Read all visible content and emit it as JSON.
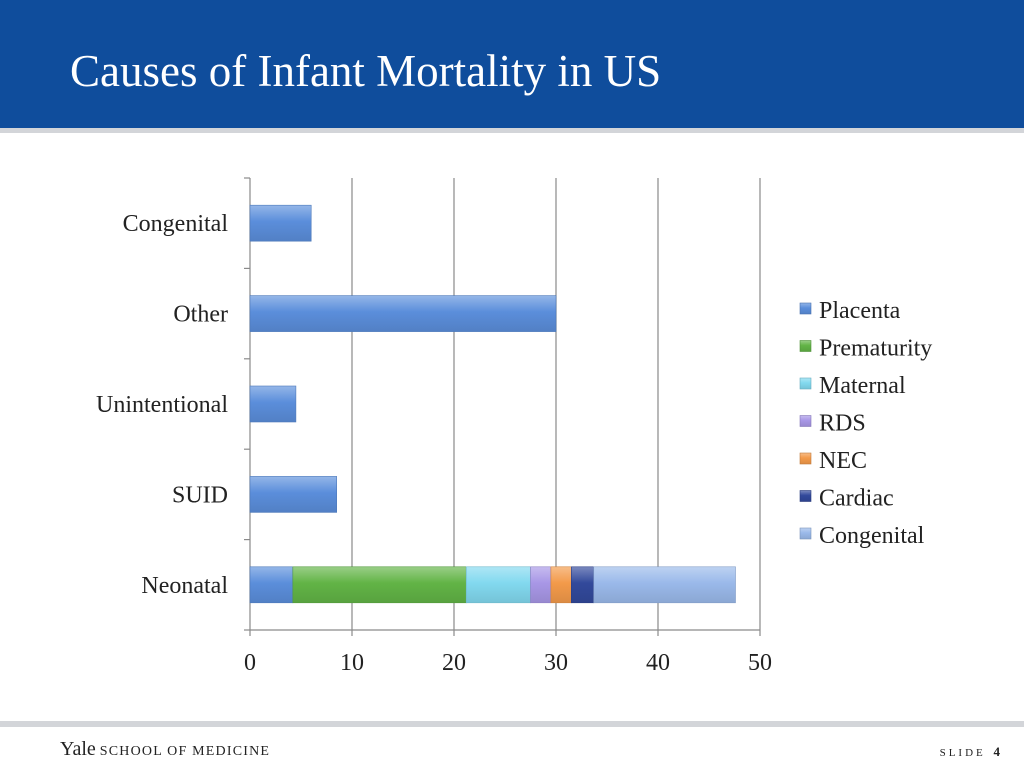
{
  "slide": {
    "title": "Causes of Infant Mortality in US",
    "footer_brand_yale": "Yale",
    "footer_brand_school": "SCHOOL OF MEDICINE",
    "slide_label": "SLIDE",
    "slide_number": "4"
  },
  "colors": {
    "header_blue": "#0f4d9c",
    "rule_gray": "#d3d5d9"
  },
  "chart_data": {
    "type": "bar",
    "orientation": "horizontal",
    "stacked": true,
    "categories": [
      "Congenital",
      "Other",
      "Unintentional",
      "SUID",
      "Neonatal"
    ],
    "series": [
      {
        "name": "Placenta",
        "color": "#5b8edb",
        "values": [
          6,
          30,
          4.5,
          8.5,
          4.2
        ]
      },
      {
        "name": "Prematurity",
        "color": "#62b446",
        "values": [
          0,
          0,
          0,
          0,
          17
        ]
      },
      {
        "name": "Maternal",
        "color": "#82d9ef",
        "values": [
          0,
          0,
          0,
          0,
          6.3
        ]
      },
      {
        "name": "RDS",
        "color": "#a897e6",
        "values": [
          0,
          0,
          0,
          0,
          2
        ]
      },
      {
        "name": "NEC",
        "color": "#f39a4a",
        "values": [
          0,
          0,
          0,
          0,
          2
        ]
      },
      {
        "name": "Cardiac",
        "color": "#32499b",
        "values": [
          0,
          0,
          0,
          0,
          2.2
        ]
      },
      {
        "name": "Congenital",
        "color": "#9ab9ea",
        "values": [
          0,
          0,
          0,
          0,
          13.9
        ]
      }
    ],
    "xlim": [
      0,
      50
    ],
    "xticks": [
      "0",
      "10",
      "20",
      "30",
      "40",
      "50"
    ],
    "grid": true,
    "legend_position": "right",
    "title": "",
    "xlabel": "",
    "ylabel": ""
  }
}
